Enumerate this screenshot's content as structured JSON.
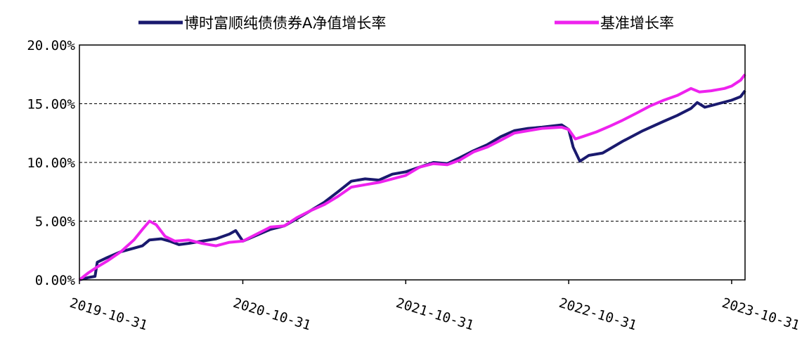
{
  "chart_data": {
    "type": "line",
    "title": "",
    "xlabel": "",
    "ylabel": "",
    "x_range": [
      "2019-10-31",
      "2023-11-30"
    ],
    "ylim": [
      0,
      20
    ],
    "y_ticks": [
      "0.00%",
      "5.00%",
      "10.00%",
      "15.00%",
      "20.00%"
    ],
    "x_ticks": [
      "2019-10-31",
      "2020-10-31",
      "2021-10-31",
      "2022-10-31",
      "2023-10-31"
    ],
    "grid": "horizontal dashed",
    "legend_position": "top",
    "series": [
      {
        "name": "博时富顺纯债债券A净值增长率",
        "color": "#1a1a6e",
        "points": [
          [
            "2019-10-31",
            0.0
          ],
          [
            "2019-11-20",
            0.2
          ],
          [
            "2019-12-05",
            0.3
          ],
          [
            "2019-12-10",
            1.5
          ],
          [
            "2020-01-01",
            1.9
          ],
          [
            "2020-02-01",
            2.4
          ],
          [
            "2020-03-01",
            2.7
          ],
          [
            "2020-03-20",
            2.9
          ],
          [
            "2020-04-05",
            3.4
          ],
          [
            "2020-05-01",
            3.5
          ],
          [
            "2020-05-20",
            3.3
          ],
          [
            "2020-06-10",
            3.0
          ],
          [
            "2020-07-01",
            3.1
          ],
          [
            "2020-08-01",
            3.3
          ],
          [
            "2020-09-01",
            3.5
          ],
          [
            "2020-10-01",
            3.9
          ],
          [
            "2020-10-15",
            4.2
          ],
          [
            "2020-10-31",
            3.3
          ],
          [
            "2020-12-01",
            3.8
          ],
          [
            "2021-01-01",
            4.3
          ],
          [
            "2021-02-01",
            4.6
          ],
          [
            "2021-03-01",
            5.2
          ],
          [
            "2021-04-01",
            5.9
          ],
          [
            "2021-05-01",
            6.6
          ],
          [
            "2021-06-01",
            7.5
          ],
          [
            "2021-07-01",
            8.4
          ],
          [
            "2021-08-01",
            8.6
          ],
          [
            "2021-09-01",
            8.5
          ],
          [
            "2021-10-01",
            9.0
          ],
          [
            "2021-10-31",
            9.2
          ],
          [
            "2021-12-01",
            9.6
          ],
          [
            "2022-01-01",
            10.0
          ],
          [
            "2022-02-01",
            9.9
          ],
          [
            "2022-03-01",
            10.4
          ],
          [
            "2022-04-01",
            11.0
          ],
          [
            "2022-05-01",
            11.5
          ],
          [
            "2022-06-01",
            12.2
          ],
          [
            "2022-07-01",
            12.7
          ],
          [
            "2022-08-01",
            12.9
          ],
          [
            "2022-09-01",
            13.0
          ],
          [
            "2022-10-15",
            13.2
          ],
          [
            "2022-10-31",
            12.8
          ],
          [
            "2022-11-10",
            11.3
          ],
          [
            "2022-11-25",
            10.1
          ],
          [
            "2022-12-15",
            10.6
          ],
          [
            "2023-01-15",
            10.8
          ],
          [
            "2023-03-01",
            11.8
          ],
          [
            "2023-04-15",
            12.7
          ],
          [
            "2023-06-01",
            13.5
          ],
          [
            "2023-07-01",
            14.0
          ],
          [
            "2023-08-01",
            14.6
          ],
          [
            "2023-08-15",
            15.1
          ],
          [
            "2023-09-01",
            14.7
          ],
          [
            "2023-10-01",
            15.0
          ],
          [
            "2023-10-31",
            15.3
          ],
          [
            "2023-11-20",
            15.6
          ],
          [
            "2023-11-30",
            16.1
          ]
        ]
      },
      {
        "name": "基准增长率",
        "color": "#ee22ee",
        "points": [
          [
            "2019-10-31",
            0.0
          ],
          [
            "2019-11-20",
            0.6
          ],
          [
            "2019-12-10",
            1.1
          ],
          [
            "2020-01-01",
            1.6
          ],
          [
            "2020-02-01",
            2.4
          ],
          [
            "2020-03-01",
            3.4
          ],
          [
            "2020-03-20",
            4.3
          ],
          [
            "2020-04-05",
            5.0
          ],
          [
            "2020-04-20",
            4.7
          ],
          [
            "2020-05-10",
            3.7
          ],
          [
            "2020-06-01",
            3.3
          ],
          [
            "2020-07-01",
            3.4
          ],
          [
            "2020-08-01",
            3.1
          ],
          [
            "2020-09-01",
            2.9
          ],
          [
            "2020-10-01",
            3.2
          ],
          [
            "2020-10-31",
            3.3
          ],
          [
            "2020-12-01",
            3.9
          ],
          [
            "2021-01-01",
            4.5
          ],
          [
            "2021-02-01",
            4.6
          ],
          [
            "2021-03-01",
            5.3
          ],
          [
            "2021-04-01",
            5.9
          ],
          [
            "2021-05-01",
            6.4
          ],
          [
            "2021-06-01",
            7.1
          ],
          [
            "2021-07-01",
            7.9
          ],
          [
            "2021-08-01",
            8.1
          ],
          [
            "2021-09-01",
            8.3
          ],
          [
            "2021-10-01",
            8.6
          ],
          [
            "2021-10-31",
            8.9
          ],
          [
            "2021-12-01",
            9.6
          ],
          [
            "2022-01-01",
            9.9
          ],
          [
            "2022-02-01",
            9.8
          ],
          [
            "2022-03-01",
            10.2
          ],
          [
            "2022-04-01",
            10.9
          ],
          [
            "2022-05-01",
            11.3
          ],
          [
            "2022-06-01",
            11.9
          ],
          [
            "2022-07-01",
            12.5
          ],
          [
            "2022-08-01",
            12.7
          ],
          [
            "2022-09-01",
            12.9
          ],
          [
            "2022-10-15",
            13.0
          ],
          [
            "2022-10-31",
            12.8
          ],
          [
            "2022-11-15",
            12.0
          ],
          [
            "2022-12-01",
            12.2
          ],
          [
            "2023-01-01",
            12.6
          ],
          [
            "2023-02-01",
            13.1
          ],
          [
            "2023-03-01",
            13.6
          ],
          [
            "2023-04-01",
            14.2
          ],
          [
            "2023-05-01",
            14.8
          ],
          [
            "2023-06-01",
            15.3
          ],
          [
            "2023-07-01",
            15.7
          ],
          [
            "2023-08-01",
            16.3
          ],
          [
            "2023-08-20",
            16.0
          ],
          [
            "2023-09-15",
            16.1
          ],
          [
            "2023-10-15",
            16.3
          ],
          [
            "2023-10-31",
            16.5
          ],
          [
            "2023-11-20",
            17.0
          ],
          [
            "2023-11-30",
            17.5
          ]
        ]
      }
    ]
  }
}
